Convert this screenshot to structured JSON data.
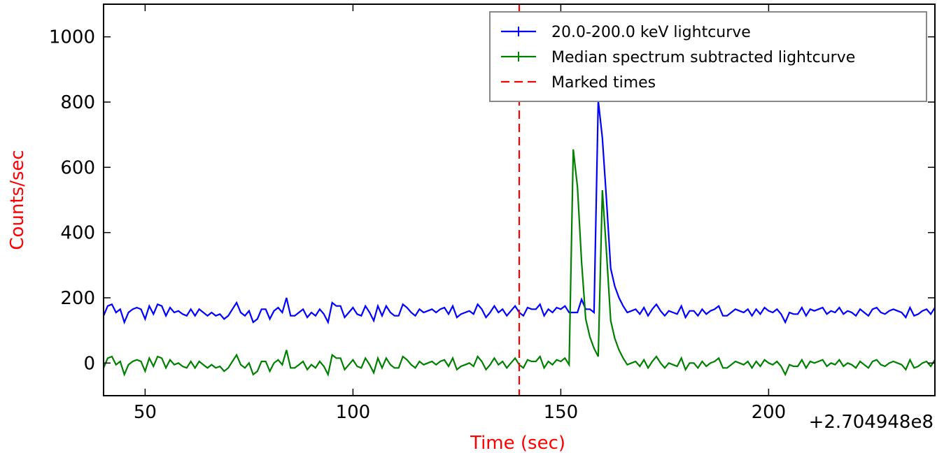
{
  "chart_data": {
    "type": "line",
    "title": "",
    "xlabel": "Time (sec)",
    "ylabel": "Counts/sec",
    "x_offset_label": "+2.704948e8",
    "xlim": [
      40,
      240
    ],
    "ylim": [
      -100,
      1100
    ],
    "x_ticks": [
      50,
      100,
      150,
      200
    ],
    "y_ticks": [
      0,
      200,
      400,
      600,
      800,
      1000
    ],
    "grid": false,
    "legend_position": "top-right",
    "marked_times": [
      140
    ],
    "series": [
      {
        "name": "20.0-200.0 keV lightcurve",
        "color": "#0000ff",
        "x": [
          40,
          41,
          42,
          43,
          44,
          45,
          46,
          47,
          48,
          49,
          50,
          51,
          52,
          53,
          54,
          55,
          56,
          57,
          58,
          59,
          60,
          61,
          62,
          63,
          64,
          65,
          66,
          67,
          68,
          69,
          70,
          71,
          72,
          73,
          74,
          75,
          76,
          77,
          78,
          79,
          80,
          81,
          82,
          83,
          84,
          85,
          86,
          87,
          88,
          89,
          90,
          91,
          92,
          93,
          94,
          95,
          96,
          97,
          98,
          99,
          100,
          101,
          102,
          103,
          104,
          105,
          106,
          107,
          108,
          109,
          110,
          111,
          112,
          113,
          114,
          115,
          116,
          117,
          118,
          119,
          120,
          121,
          122,
          123,
          124,
          125,
          126,
          127,
          128,
          129,
          130,
          131,
          132,
          133,
          134,
          135,
          136,
          137,
          138,
          139,
          140,
          141,
          142,
          143,
          144,
          145,
          146,
          147,
          148,
          149,
          150,
          151,
          152,
          153,
          154,
          155,
          156,
          157,
          158,
          159,
          160,
          161,
          162,
          163,
          164,
          165,
          166,
          167,
          168,
          169,
          170,
          171,
          172,
          173,
          174,
          175,
          176,
          177,
          178,
          179,
          180,
          181,
          182,
          183,
          184,
          185,
          186,
          187,
          188,
          189,
          190,
          191,
          192,
          193,
          194,
          195,
          196,
          197,
          198,
          199,
          200,
          201,
          202,
          203,
          204,
          205,
          206,
          207,
          208,
          209,
          210,
          211,
          212,
          213,
          214,
          215,
          216,
          217,
          218,
          219,
          220,
          221,
          222,
          223,
          224,
          225,
          226,
          227,
          228,
          229,
          230,
          231,
          232,
          233,
          234,
          235,
          236,
          237,
          238,
          239,
          240
        ],
        "y": [
          145,
          175,
          180,
          155,
          165,
          125,
          155,
          165,
          170,
          165,
          135,
          175,
          150,
          180,
          175,
          145,
          170,
          155,
          160,
          150,
          145,
          165,
          145,
          165,
          155,
          145,
          155,
          145,
          150,
          135,
          145,
          165,
          185,
          155,
          145,
          160,
          125,
          135,
          165,
          165,
          135,
          160,
          170,
          155,
          200,
          145,
          145,
          155,
          165,
          140,
          155,
          145,
          165,
          150,
          125,
          185,
          175,
          175,
          140,
          155,
          170,
          150,
          145,
          175,
          155,
          130,
          175,
          145,
          175,
          155,
          145,
          145,
          180,
          170,
          155,
          145,
          165,
          155,
          160,
          165,
          155,
          165,
          170,
          150,
          175,
          140,
          150,
          155,
          160,
          150,
          180,
          165,
          140,
          155,
          175,
          155,
          165,
          145,
          160,
          175,
          155,
          145,
          170,
          165,
          165,
          180,
          145,
          165,
          155,
          170,
          165,
          175,
          155,
          155,
          155,
          195,
          165,
          165,
          155,
          805,
          690,
          500,
          290,
          235,
          200,
          175,
          155,
          160,
          165,
          150,
          170,
          145,
          165,
          180,
          160,
          145,
          160,
          155,
          150,
          175,
          140,
          160,
          160,
          145,
          165,
          150,
          160,
          165,
          175,
          145,
          145,
          155,
          165,
          160,
          155,
          165,
          145,
          165,
          150,
          170,
          160,
          155,
          165,
          150,
          125,
          155,
          150,
          150,
          170,
          145,
          165,
          160,
          165,
          170,
          150,
          160,
          155,
          170,
          150,
          160,
          155,
          145,
          165,
          155,
          145,
          165,
          170,
          155,
          150,
          160,
          165,
          160,
          155,
          140,
          170,
          145,
          150,
          160,
          165,
          150,
          170
        ],
        "bins_note": ""
      },
      {
        "name": "Median spectrum subtracted lightcurve",
        "color": "#008000",
        "x": [],
        "y": []
      }
    ]
  }
}
